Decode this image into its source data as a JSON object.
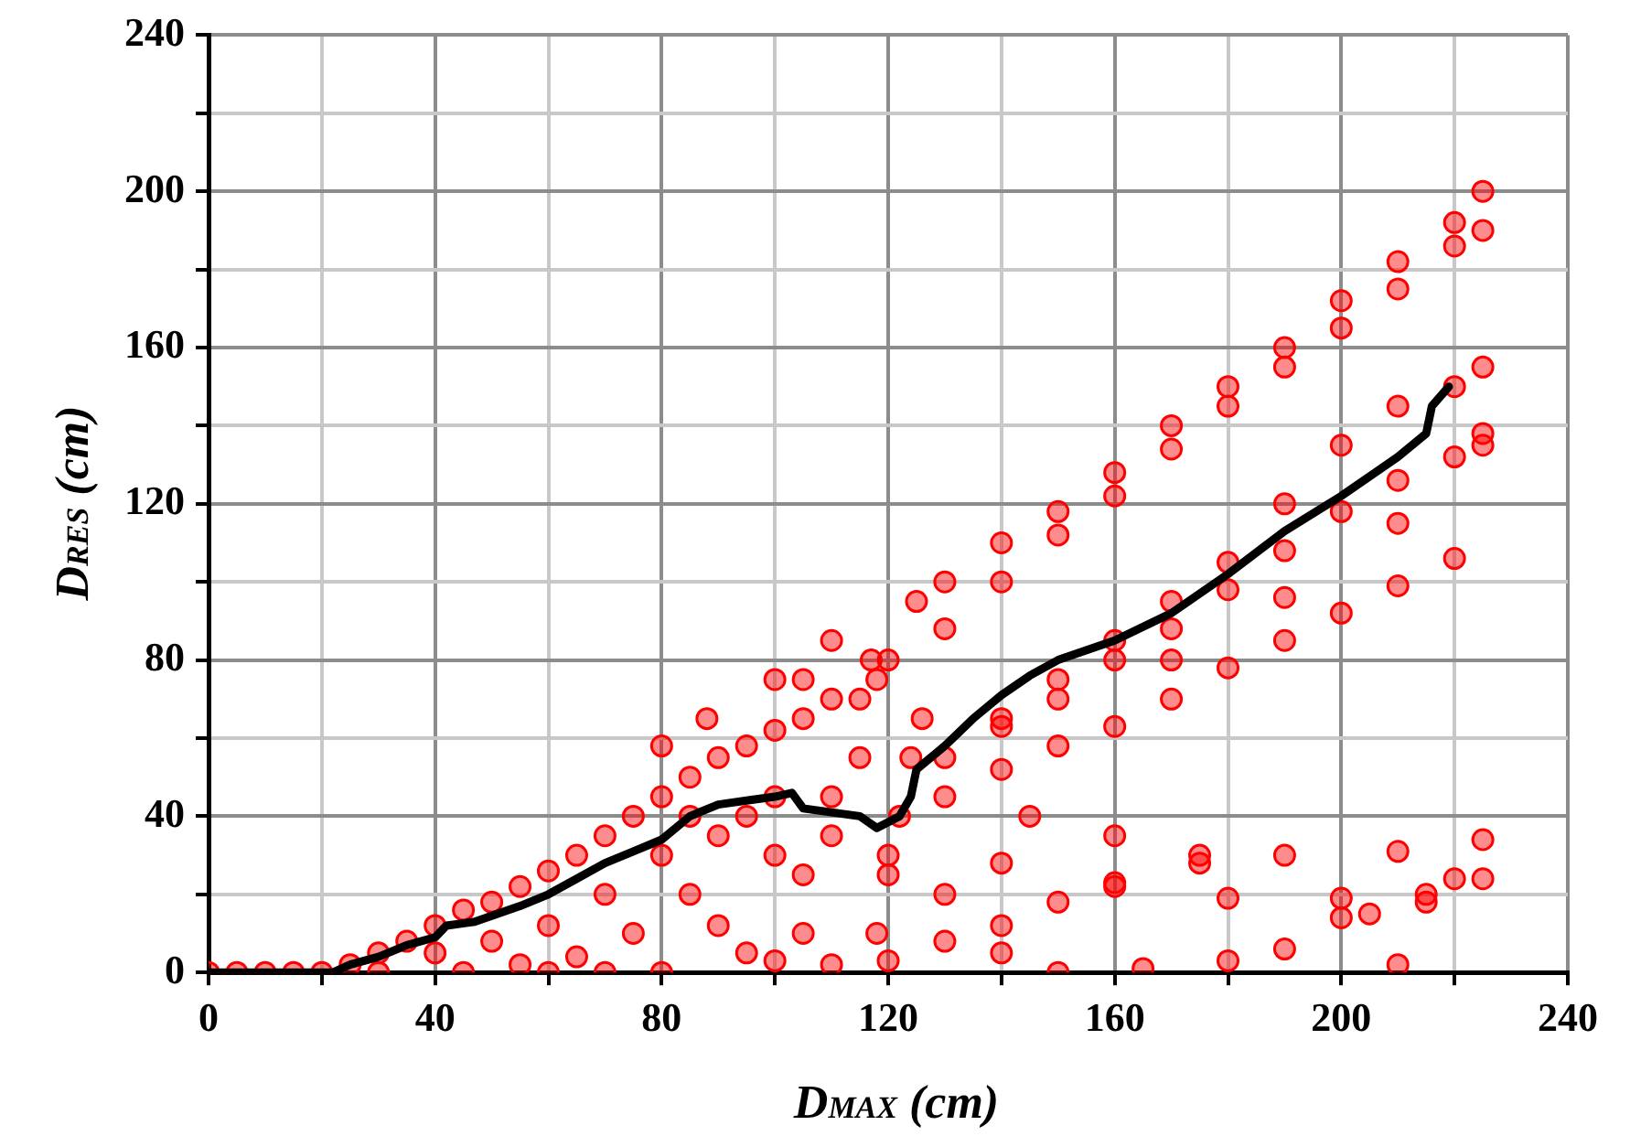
{
  "chart_data": {
    "type": "scatter",
    "xlabel": "D$_{MAX}$ (cm)",
    "ylabel": "D$_{RES}$ (cm)",
    "xlim": [
      0,
      240
    ],
    "ylim": [
      0,
      240
    ],
    "xticks": [
      0,
      {
        "value": 20,
        "label": null
      },
      40,
      {
        "value": 60,
        "label": null
      },
      80,
      {
        "value": 100,
        "label": null
      },
      120,
      {
        "value": 140,
        "label": null
      },
      160,
      {
        "value": 180,
        "label": null
      },
      200,
      {
        "value": 220,
        "label": null
      },
      240
    ],
    "yticks": [
      0,
      {
        "value": 20,
        "label": null
      },
      40,
      {
        "value": 60,
        "label": null
      },
      80,
      {
        "value": 100,
        "label": null
      },
      120,
      {
        "value": 140,
        "label": null
      },
      160,
      {
        "value": 180,
        "label": null
      },
      200,
      {
        "value": 220,
        "label": null
      },
      240
    ],
    "grid": true,
    "series": [
      {
        "color": "#ff0000",
        "marker": "circle",
        "x": [
          0,
          5,
          10,
          15,
          20,
          25,
          30,
          35,
          40,
          45,
          50,
          55,
          60,
          65,
          70,
          75,
          80,
          85,
          90,
          95,
          100,
          105,
          110,
          40,
          50,
          55,
          60,
          65,
          70,
          75,
          80,
          85,
          90,
          95,
          100,
          105,
          110,
          115,
          30,
          45,
          60,
          70,
          80,
          90,
          100,
          110,
          105,
          95,
          85,
          80,
          88,
          100,
          110,
          105,
          117,
          118,
          120,
          122,
          124,
          126,
          120,
          118,
          115,
          125,
          130,
          140,
          150,
          160,
          170,
          180,
          190,
          200,
          210,
          220,
          225,
          130,
          140,
          150,
          160,
          170,
          180,
          190,
          200,
          210,
          220,
          225,
          140,
          150,
          160,
          170,
          180,
          190,
          200,
          210,
          220,
          225,
          130,
          140,
          150,
          160,
          170,
          180,
          190,
          200,
          210,
          220,
          225,
          170,
          190,
          210,
          225,
          130,
          140,
          150,
          160,
          170,
          180,
          190,
          200,
          210,
          220,
          145,
          160,
          175,
          190,
          210,
          225,
          140,
          160,
          180,
          200,
          215,
          225,
          165,
          180,
          190,
          200,
          205,
          210,
          215,
          220,
          120,
          130,
          140,
          150,
          100,
          110,
          120,
          130,
          140,
          150,
          160,
          175
        ],
        "values": [
          0,
          0,
          0,
          0,
          0,
          2,
          5,
          8,
          12,
          16,
          18,
          22,
          26,
          30,
          35,
          40,
          45,
          50,
          55,
          58,
          62,
          65,
          70,
          5,
          8,
          2,
          12,
          4,
          20,
          10,
          30,
          20,
          12,
          5,
          30,
          10,
          45,
          55,
          0,
          0,
          0,
          0,
          0,
          35,
          45,
          35,
          25,
          40,
          40,
          58,
          65,
          75,
          85,
          75,
          80,
          10,
          25,
          40,
          55,
          65,
          80,
          75,
          70,
          95,
          100,
          110,
          118,
          128,
          140,
          150,
          160,
          172,
          182,
          192,
          200,
          88,
          100,
          112,
          122,
          134,
          145,
          155,
          165,
          175,
          186,
          190,
          65,
          75,
          85,
          95,
          105,
          120,
          135,
          145,
          150,
          155,
          55,
          63,
          70,
          80,
          88,
          98,
          108,
          118,
          126,
          132,
          138,
          80,
          96,
          115,
          135,
          45,
          52,
          58,
          63,
          70,
          78,
          85,
          92,
          99,
          106,
          40,
          35,
          30,
          30,
          31,
          34,
          28,
          22,
          19,
          19,
          20,
          24,
          1,
          3,
          6,
          14,
          15,
          2,
          18,
          24,
          30,
          20,
          5,
          0,
          3,
          2,
          3,
          8,
          12,
          18,
          23,
          28
        ]
      },
      {
        "type": "line",
        "color": "#000000",
        "marker": "none",
        "line_style": "solid",
        "x": [
          0,
          22,
          25,
          30,
          35,
          40,
          42,
          47,
          55,
          60,
          65,
          70,
          75,
          80,
          85,
          90,
          95,
          100,
          103,
          105,
          110,
          115,
          118,
          122,
          124,
          125,
          130,
          135,
          140,
          145,
          150,
          160,
          170,
          180,
          190,
          200,
          210,
          215,
          216,
          219
        ],
        "values": [
          0,
          0,
          2,
          4,
          7,
          9,
          12,
          13,
          17,
          20,
          24,
          28,
          31,
          34,
          40,
          43,
          44,
          45,
          46,
          42,
          41,
          40,
          37,
          40,
          45,
          52,
          58,
          65,
          71,
          76,
          80,
          85,
          92,
          102,
          113,
          122,
          132,
          138,
          145,
          150
        ]
      }
    ]
  }
}
